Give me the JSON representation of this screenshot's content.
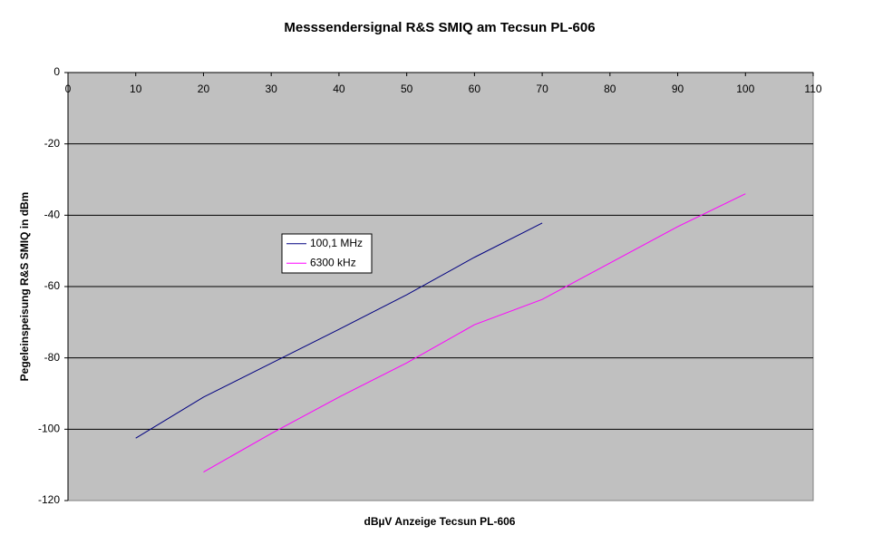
{
  "chart_data": {
    "type": "line",
    "title": "Messsendersignal R&S SMIQ am Tecsun PL-606",
    "x_label": "dBµV Anzeige Tecsun PL-606",
    "y_label": "Pegeleinspeisung R&S SMIQ in dBm",
    "xlim": [
      0,
      110
    ],
    "xticks": [
      0,
      10,
      20,
      30,
      40,
      50,
      60,
      70,
      80,
      90,
      100,
      110
    ],
    "ylim": [
      -120,
      0
    ],
    "yticks": [
      0,
      -20,
      -40,
      -60,
      -80,
      -100,
      -120
    ],
    "grid": true,
    "legend": "left",
    "series": [
      {
        "name": "100,1 MHz",
        "color": "#000080",
        "x": [
          10,
          20,
          30,
          40,
          50,
          60,
          70
        ],
        "values": [
          -102.5,
          -91,
          -81.5,
          -72,
          -62.3,
          -51.8,
          -42.2
        ]
      },
      {
        "name": "6300 kHz",
        "color": "#ff00ff",
        "x": [
          20,
          30,
          40,
          50,
          60,
          70,
          80,
          90,
          100
        ],
        "values": [
          -112,
          -101.2,
          -91,
          -81.4,
          -70.7,
          -63.6,
          -53.4,
          -43.2,
          -34
        ]
      }
    ]
  }
}
